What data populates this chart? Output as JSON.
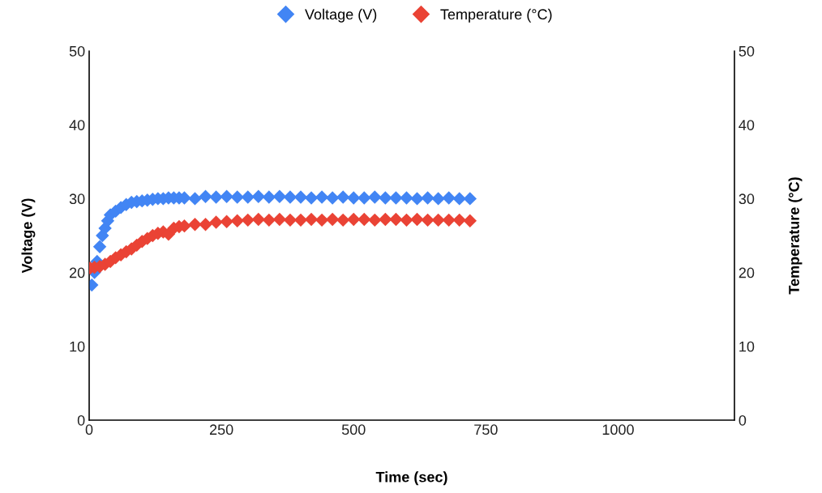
{
  "chart_data": {
    "type": "scatter",
    "xlabel": "Time (sec)",
    "ylabel": "Voltage (V)",
    "y2label": "Temperature (°C)",
    "xlim": [
      0,
      1220
    ],
    "xticks": [
      0,
      250,
      500,
      750,
      1000
    ],
    "ylim": [
      0,
      50
    ],
    "yticks": [
      0,
      10,
      20,
      30,
      40,
      50
    ],
    "y2lim": [
      0,
      50
    ],
    "y2ticks": [
      0,
      10,
      20,
      30,
      40,
      50
    ],
    "legend": "top",
    "grid": false,
    "marker": "diamond",
    "series": [
      {
        "name": "Voltage (V)",
        "color": "#4285f4",
        "x": [
          5,
          10,
          15,
          20,
          25,
          30,
          35,
          40,
          50,
          60,
          70,
          80,
          90,
          100,
          110,
          120,
          130,
          140,
          150,
          160,
          170,
          180,
          200,
          220,
          240,
          260,
          280,
          300,
          320,
          340,
          360,
          380,
          400,
          420,
          440,
          460,
          480,
          500,
          520,
          540,
          560,
          580,
          600,
          620,
          640,
          660,
          680,
          700,
          720
        ],
        "values": [
          18.3,
          20,
          21.5,
          23.5,
          25,
          26,
          27,
          27.8,
          28.3,
          28.8,
          29.2,
          29.5,
          29.6,
          29.7,
          29.8,
          29.9,
          30,
          30,
          30.1,
          30.1,
          30.1,
          30.1,
          30,
          30.3,
          30.2,
          30.3,
          30.2,
          30.2,
          30.3,
          30.2,
          30.3,
          30.2,
          30.2,
          30.1,
          30.2,
          30.1,
          30.2,
          30.1,
          30.1,
          30.2,
          30.1,
          30.1,
          30.1,
          30,
          30.1,
          30,
          30.1,
          30,
          30
        ]
      },
      {
        "name": "Temperature (°C)",
        "color": "#ea4335",
        "axis": "y2",
        "x": [
          2,
          10,
          20,
          30,
          40,
          50,
          60,
          70,
          80,
          90,
          100,
          110,
          120,
          130,
          140,
          150,
          160,
          170,
          180,
          200,
          220,
          240,
          260,
          280,
          300,
          320,
          340,
          360,
          380,
          400,
          420,
          440,
          460,
          480,
          500,
          520,
          540,
          560,
          580,
          600,
          620,
          640,
          660,
          680,
          700,
          720
        ],
        "values": [
          20.6,
          20.7,
          20.8,
          21.1,
          21.5,
          22,
          22.4,
          22.8,
          23.2,
          23.7,
          24.2,
          24.6,
          25,
          25.3,
          25.5,
          25.2,
          26,
          26.2,
          26.3,
          26.5,
          26.5,
          26.8,
          26.9,
          27,
          27.1,
          27.2,
          27.1,
          27.2,
          27.1,
          27.1,
          27.2,
          27.1,
          27.2,
          27.1,
          27.2,
          27.2,
          27.1,
          27.2,
          27.2,
          27.1,
          27.2,
          27.1,
          27.1,
          27.1,
          27.1,
          27
        ]
      }
    ]
  }
}
